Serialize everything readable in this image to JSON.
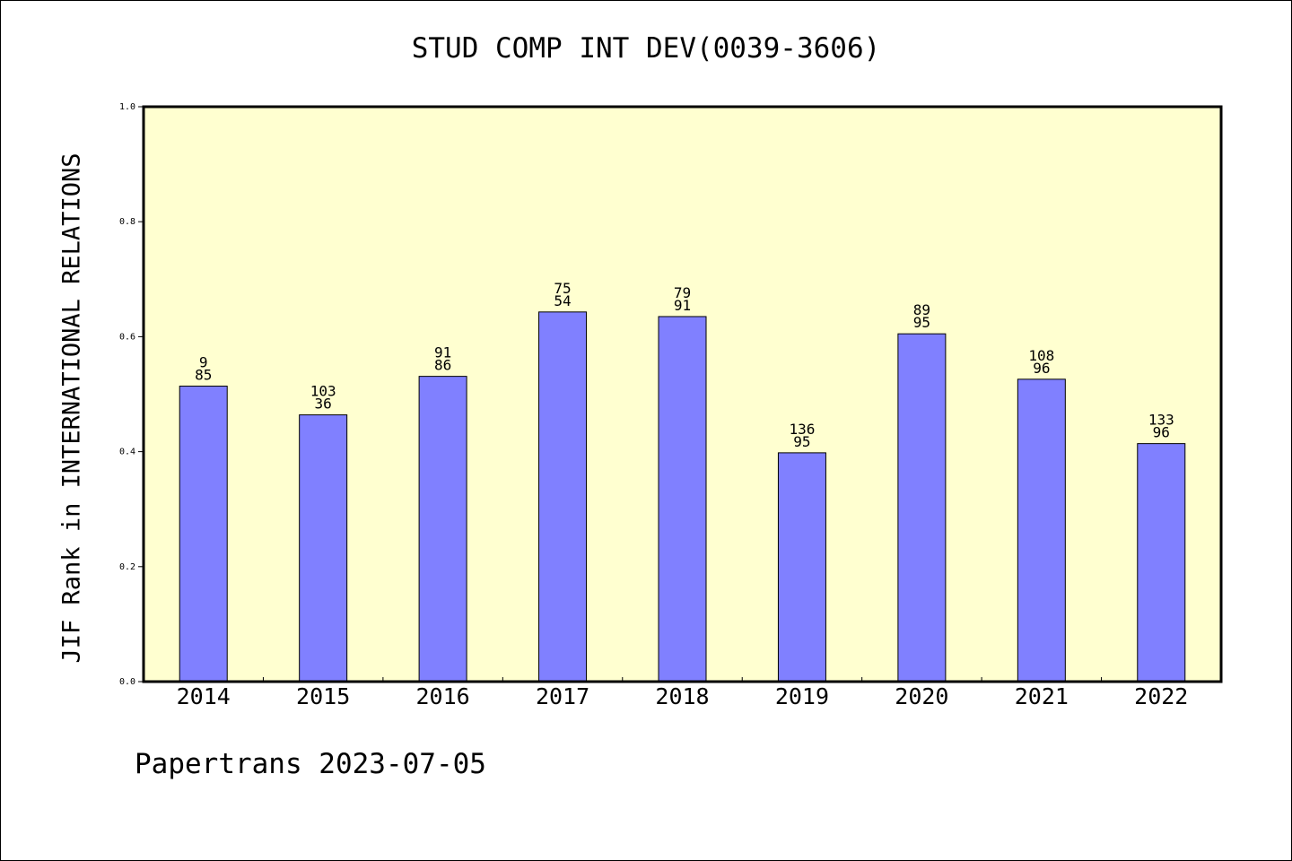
{
  "chart_data": {
    "type": "bar",
    "title": "STUD COMP INT DEV(0039-3606)",
    "xlabel": "",
    "ylabel": "JIF Rank in INTERNATIONAL RELATIONS",
    "categories": [
      "2014",
      "2015",
      "2016",
      "2017",
      "2018",
      "2019",
      "2020",
      "2021",
      "2022"
    ],
    "values": [
      0.514,
      0.464,
      0.531,
      0.643,
      0.635,
      0.398,
      0.605,
      0.526,
      0.414
    ],
    "bar_labels_top": [
      "9",
      "103",
      "91",
      "75",
      "79",
      "136",
      "89",
      "108",
      "133"
    ],
    "bar_labels_bottom": [
      "85",
      "36",
      "86",
      "54",
      "91",
      "95",
      "95",
      "96",
      "96"
    ],
    "ylim": [
      0,
      1.0
    ],
    "yticks": [
      "0.0",
      "0.2",
      "0.4",
      "0.6",
      "0.8",
      "1.0"
    ],
    "grid": false,
    "colors": {
      "plot_background": "#ffffd0",
      "bar_fill": "#8080ff",
      "bar_stroke": "#000000"
    }
  },
  "footer": {
    "text": "Papertrans 2023-07-05"
  }
}
